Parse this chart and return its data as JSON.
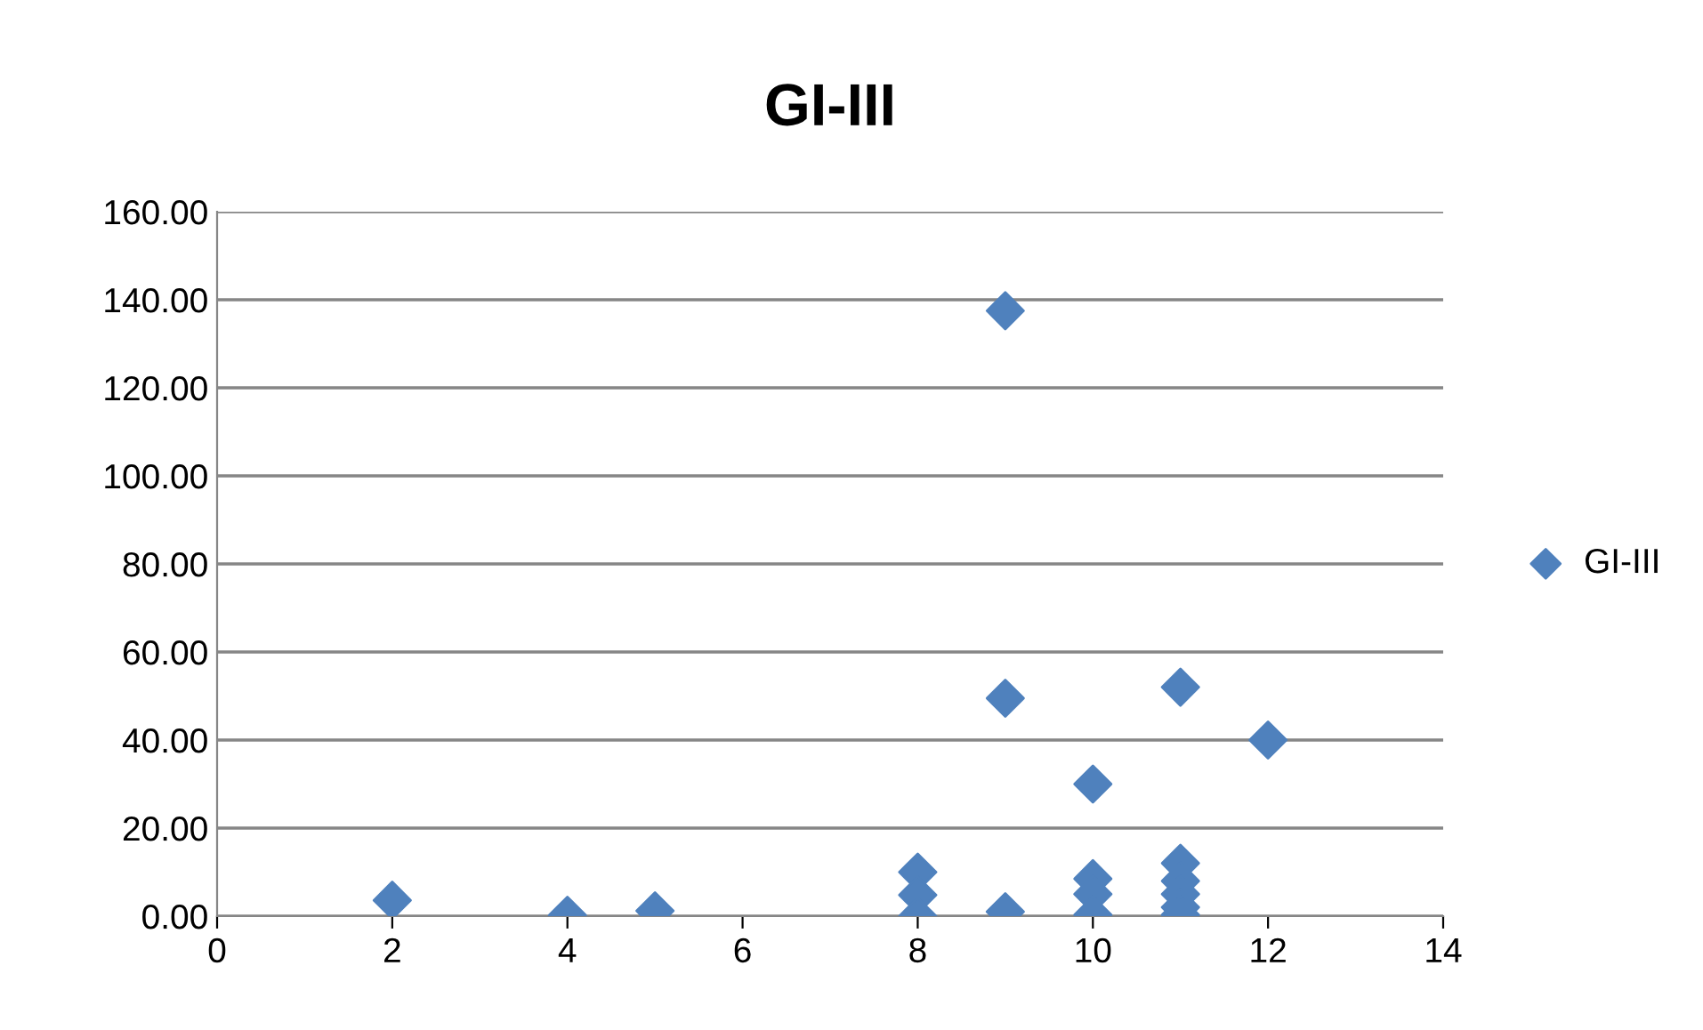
{
  "chart_data": {
    "type": "scatter",
    "title": "GI-III",
    "x": [
      2,
      4,
      5,
      8,
      8,
      8,
      9,
      9,
      9,
      10,
      10,
      10,
      10,
      11,
      11,
      11,
      11,
      11,
      11,
      12
    ],
    "series": [
      {
        "name": "GI-III",
        "color": "#4f81bd",
        "values": [
          3.6,
          0.2,
          1.2,
          10,
          4.8,
          0,
          137.5,
          49.5,
          1,
          30,
          8.5,
          5,
          0.3,
          52,
          12,
          8,
          5,
          2,
          0.3,
          40
        ]
      }
    ],
    "xlim": [
      0,
      14
    ],
    "xticks": [
      0,
      2,
      4,
      6,
      8,
      10,
      12,
      14
    ],
    "ylim": [
      0,
      160
    ],
    "yticks": [
      {
        "value": 0,
        "label": "0.00"
      },
      {
        "value": 20,
        "label": "20.00"
      },
      {
        "value": 40,
        "label": "40.00"
      },
      {
        "value": 60,
        "label": "60.00"
      },
      {
        "value": 80,
        "label": "80.00"
      },
      {
        "value": 100,
        "label": "100.00"
      },
      {
        "value": 120,
        "label": "120.00"
      },
      {
        "value": 140,
        "label": "140.00"
      },
      {
        "value": 160,
        "label": "160.00"
      }
    ],
    "grid": "y",
    "legend": "right",
    "marker": "diamond"
  }
}
